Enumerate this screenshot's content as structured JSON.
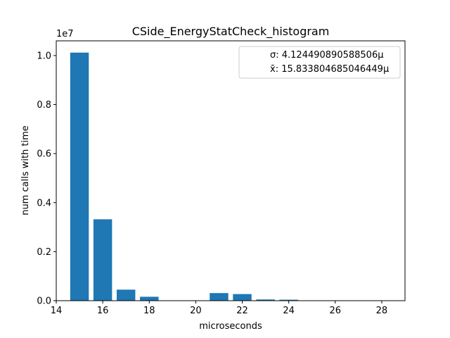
{
  "chart_data": {
    "type": "bar",
    "title": "CSide_EnergyStatCheck_histogram",
    "xlabel": "microseconds",
    "ylabel": "num calls with time",
    "offset_label": "1e7",
    "xlim": [
      14,
      29
    ],
    "ylim": [
      0,
      1.06
    ],
    "x_ticks": [
      14,
      16,
      18,
      20,
      22,
      24,
      26,
      28
    ],
    "y_ticks": [
      0.0,
      0.2,
      0.4,
      0.6,
      0.8,
      1.0
    ],
    "bar_color": "#1f77b4",
    "grid": false,
    "legend_position": "top-right",
    "legend": [
      "σ: 4.124490890588506µ",
      "x̄: 15.833804685046449µ"
    ],
    "bars": [
      {
        "x": 15,
        "value": 1.012
      },
      {
        "x": 16,
        "value": 0.332
      },
      {
        "x": 17,
        "value": 0.045
      },
      {
        "x": 18,
        "value": 0.016
      },
      {
        "x": 19,
        "value": 0.001
      },
      {
        "x": 20,
        "value": 0.001
      },
      {
        "x": 21,
        "value": 0.031
      },
      {
        "x": 22,
        "value": 0.027
      },
      {
        "x": 23,
        "value": 0.005
      },
      {
        "x": 24,
        "value": 0.004
      },
      {
        "x": 25,
        "value": 0.001
      },
      {
        "x": 26,
        "value": 0.001
      },
      {
        "x": 27,
        "value": 0.001
      },
      {
        "x": 28,
        "value": 0.001
      }
    ]
  }
}
